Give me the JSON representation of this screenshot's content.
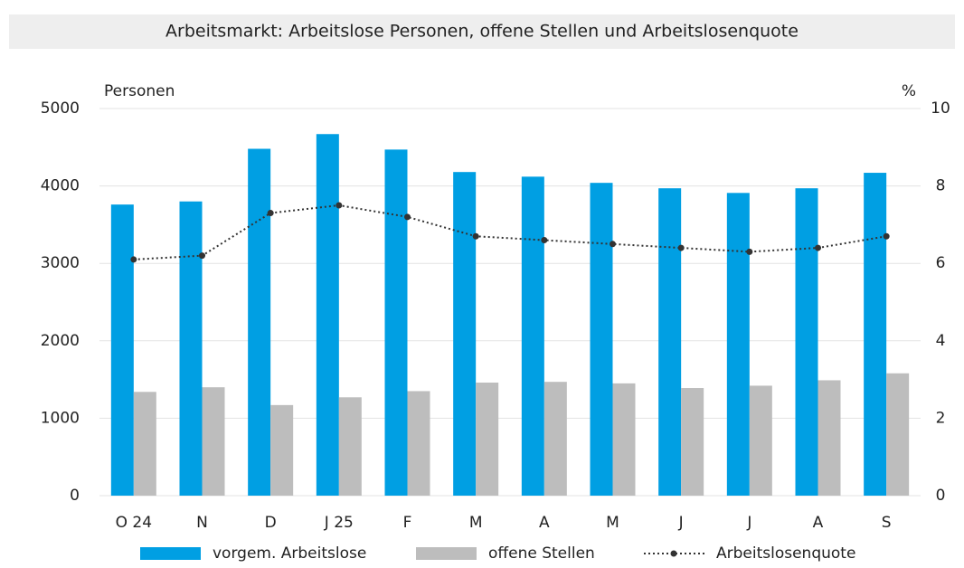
{
  "chart_data": {
    "type": "bar_line",
    "title": "Arbeitsmarkt: Arbeitslose Personen, offene Stellen und Arbeitslosenquote",
    "y_label": "Personen",
    "y2_label": "%",
    "categories": [
      "O 24",
      "N",
      "D",
      "J 25",
      "F",
      "M",
      "A",
      "M",
      "J",
      "J",
      "A",
      "S"
    ],
    "series": [
      {
        "name": "vorgem. Arbeitslose",
        "color": "#009fe3",
        "kind": "bar",
        "values": [
          3760,
          3800,
          4480,
          4670,
          4470,
          4180,
          4120,
          4040,
          3970,
          3910,
          3970,
          4170
        ]
      },
      {
        "name": "offene Stellen",
        "color": "#bdbdbd",
        "kind": "bar",
        "values": [
          1340,
          1400,
          1170,
          1270,
          1350,
          1460,
          1470,
          1450,
          1390,
          1420,
          1490,
          1580
        ]
      },
      {
        "name": "Arbeitslosenquote",
        "color": "#333333",
        "kind": "line",
        "axis": "y2",
        "values": [
          6.1,
          6.2,
          7.3,
          7.5,
          7.2,
          6.7,
          6.6,
          6.5,
          6.4,
          6.3,
          6.4,
          6.7
        ]
      }
    ],
    "ylim": [
      0,
      5000
    ],
    "yticks": [
      0,
      1000,
      2000,
      3000,
      4000,
      5000
    ],
    "y2lim": [
      0,
      10
    ],
    "y2ticks": [
      0,
      2,
      4,
      6,
      8,
      10
    ],
    "grid": true,
    "legend": "bottom"
  }
}
